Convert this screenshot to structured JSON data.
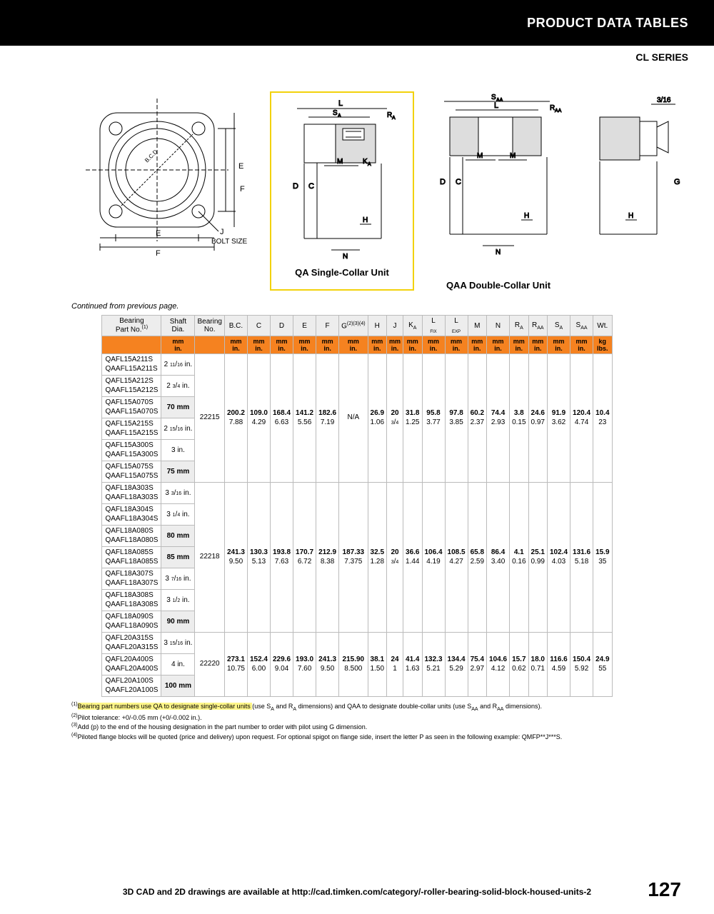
{
  "header": {
    "title": "PRODUCT DATA TABLES",
    "series": "CL SERIES"
  },
  "diagrams": {
    "left_labels": {
      "E": "E",
      "F": "F",
      "J": "J",
      "BOLT": "BOLT SIZE"
    },
    "qa_caption": "QA Single-Collar Unit",
    "qaa_caption": "QAA Double-Collar Unit"
  },
  "continued": "Continued from previous page.",
  "columns": [
    "Bearing\nPart No.",
    "Shaft\nDia.",
    "Bearing\nNo.",
    "B.C.",
    "C",
    "D",
    "E",
    "F",
    "G",
    "H",
    "J",
    "K",
    "L FIX",
    "L EXP",
    "M",
    "N",
    "R",
    "R",
    "S",
    "S",
    "Wt."
  ],
  "units_mm": [
    "mm",
    "",
    "mm",
    "mm",
    "mm",
    "mm",
    "mm",
    "mm",
    "mm",
    "mm",
    "mm",
    "mm",
    "mm",
    "mm",
    "mm",
    "mm",
    "mm",
    "mm",
    "mm",
    "kg"
  ],
  "units_in": [
    "in.",
    "",
    "in.",
    "in.",
    "in.",
    "in.",
    "in.",
    "in.",
    "in.",
    "in.",
    "in.",
    "in.",
    "in.",
    "in.",
    "in.",
    "in.",
    "in.",
    "in.",
    "in.",
    "lbs."
  ],
  "groups": [
    {
      "rows": [
        {
          "pn": [
            "QAFL15A211S",
            "QAAFL15A211S"
          ],
          "shaft": "2 11/16 in.",
          "mm": false
        },
        {
          "pn": [
            "QAFL15A212S",
            "QAAFL15A212S"
          ],
          "shaft": "2 3/4 in.",
          "mm": false
        },
        {
          "pn": [
            "QAFL15A070S",
            "QAAFL15A070S"
          ],
          "shaft": "70 mm",
          "mm": true
        },
        {
          "pn": [
            "QAFL15A215S",
            "QAAFL15A215S"
          ],
          "shaft": "2 15/16 in.",
          "mm": false
        },
        {
          "pn": [
            "QAFL15A300S",
            "QAAFL15A300S"
          ],
          "shaft": "3 in.",
          "mm": false
        },
        {
          "pn": [
            "QAFL15A075S",
            "QAAFL15A075S"
          ],
          "shaft": "75 mm",
          "mm": true
        }
      ],
      "bno": "22215",
      "dims": {
        "BC": [
          "200.2",
          "7.88"
        ],
        "C": [
          "109.0",
          "4.29"
        ],
        "D": [
          "168.4",
          "6.63"
        ],
        "E": [
          "141.2",
          "5.56"
        ],
        "F": [
          "182.6",
          "7.19"
        ],
        "G": [
          "N/A",
          ""
        ],
        "H": [
          "26.9",
          "1.06"
        ],
        "J": [
          "20",
          "3/4"
        ],
        "KA": [
          "31.8",
          "1.25"
        ],
        "LF": [
          "95.8",
          "3.77"
        ],
        "LE": [
          "97.8",
          "3.85"
        ],
        "M": [
          "60.2",
          "2.37"
        ],
        "N": [
          "74.4",
          "2.93"
        ],
        "RA": [
          "3.8",
          "0.15"
        ],
        "RAA": [
          "24.6",
          "0.97"
        ],
        "SA": [
          "91.9",
          "3.62"
        ],
        "SAA": [
          "120.4",
          "4.74"
        ],
        "WT": [
          "10.4",
          "23"
        ]
      }
    },
    {
      "rows": [
        {
          "pn": [
            "QAFL18A303S",
            "QAAFL18A303S"
          ],
          "shaft": "3 3/16 in.",
          "mm": false
        },
        {
          "pn": [
            "QAFL18A304S",
            "QAAFL18A304S"
          ],
          "shaft": "3 1/4 in.",
          "mm": false
        },
        {
          "pn": [
            "QAFL18A080S",
            "QAAFL18A080S"
          ],
          "shaft": "80 mm",
          "mm": true
        },
        {
          "pn": [
            "QAFL18A085S",
            "QAAFL18A085S"
          ],
          "shaft": "85 mm",
          "mm": true
        },
        {
          "pn": [
            "QAFL18A307S",
            "QAAFL18A307S"
          ],
          "shaft": "3 7/16 in.",
          "mm": false
        },
        {
          "pn": [
            "QAFL18A308S",
            "QAAFL18A308S"
          ],
          "shaft": "3 1/2 in.",
          "mm": false
        },
        {
          "pn": [
            "QAFL18A090S",
            "QAAFL18A090S"
          ],
          "shaft": "90 mm",
          "mm": true
        }
      ],
      "bno": "22218",
      "dims": {
        "BC": [
          "241.3",
          "9.50"
        ],
        "C": [
          "130.3",
          "5.13"
        ],
        "D": [
          "193.8",
          "7.63"
        ],
        "E": [
          "170.7",
          "6.72"
        ],
        "F": [
          "212.9",
          "8.38"
        ],
        "G": [
          "187.33",
          "7.375"
        ],
        "H": [
          "32.5",
          "1.28"
        ],
        "J": [
          "20",
          "3/4"
        ],
        "KA": [
          "36.6",
          "1.44"
        ],
        "LF": [
          "106.4",
          "4.19"
        ],
        "LE": [
          "108.5",
          "4.27"
        ],
        "M": [
          "65.8",
          "2.59"
        ],
        "N": [
          "86.4",
          "3.40"
        ],
        "RA": [
          "4.1",
          "0.16"
        ],
        "RAA": [
          "25.1",
          "0.99"
        ],
        "SA": [
          "102.4",
          "4.03"
        ],
        "SAA": [
          "131.6",
          "5.18"
        ],
        "WT": [
          "15.9",
          "35"
        ]
      }
    },
    {
      "rows": [
        {
          "pn": [
            "QAFL20A315S",
            "QAAFL20A315S"
          ],
          "shaft": "3 15/16 in.",
          "mm": false
        },
        {
          "pn": [
            "QAFL20A400S",
            "QAAFL20A400S"
          ],
          "shaft": "4 in.",
          "mm": false
        },
        {
          "pn": [
            "QAFL20A100S",
            "QAAFL20A100S"
          ],
          "shaft": "100 mm",
          "mm": true
        }
      ],
      "bno": "22220",
      "dims": {
        "BC": [
          "273.1",
          "10.75"
        ],
        "C": [
          "152.4",
          "6.00"
        ],
        "D": [
          "229.6",
          "9.04"
        ],
        "E": [
          "193.0",
          "7.60"
        ],
        "F": [
          "241.3",
          "9.50"
        ],
        "G": [
          "215.90",
          "8.500"
        ],
        "H": [
          "38.1",
          "1.50"
        ],
        "J": [
          "24",
          "1"
        ],
        "KA": [
          "41.4",
          "1.63"
        ],
        "LF": [
          "132.3",
          "5.21"
        ],
        "LE": [
          "134.4",
          "5.29"
        ],
        "M": [
          "75.4",
          "2.97"
        ],
        "N": [
          "104.6",
          "4.12"
        ],
        "RA": [
          "15.7",
          "0.62"
        ],
        "RAA": [
          "18.0",
          "0.71"
        ],
        "SA": [
          "116.6",
          "4.59"
        ],
        "SAA": [
          "150.4",
          "5.92"
        ],
        "WT": [
          "24.9",
          "55"
        ]
      }
    }
  ],
  "footnotes": {
    "n1": "Bearing part numbers use QA to designate single-collar units (use SA and RA dimensions) and QAA to designate double-collar units (use SAA and RAA dimensions).",
    "n2": "Pilot tolerance: +0/-0.05 mm (+0/-0.002 in.).",
    "n3": "Add (p) to the end of the housing designation in the part number to order with pilot using G dimension.",
    "n4": "Piloted flange blocks will be quoted (price and delivery) upon request. For optional spigot on flange side, insert the letter P as seen in the following example: QMFP**J***S."
  },
  "footer": "3D CAD and 2D drawings are available at http://cad.timken.com/category/-roller-bearing-solid-block-housed-units-2",
  "page": "127"
}
